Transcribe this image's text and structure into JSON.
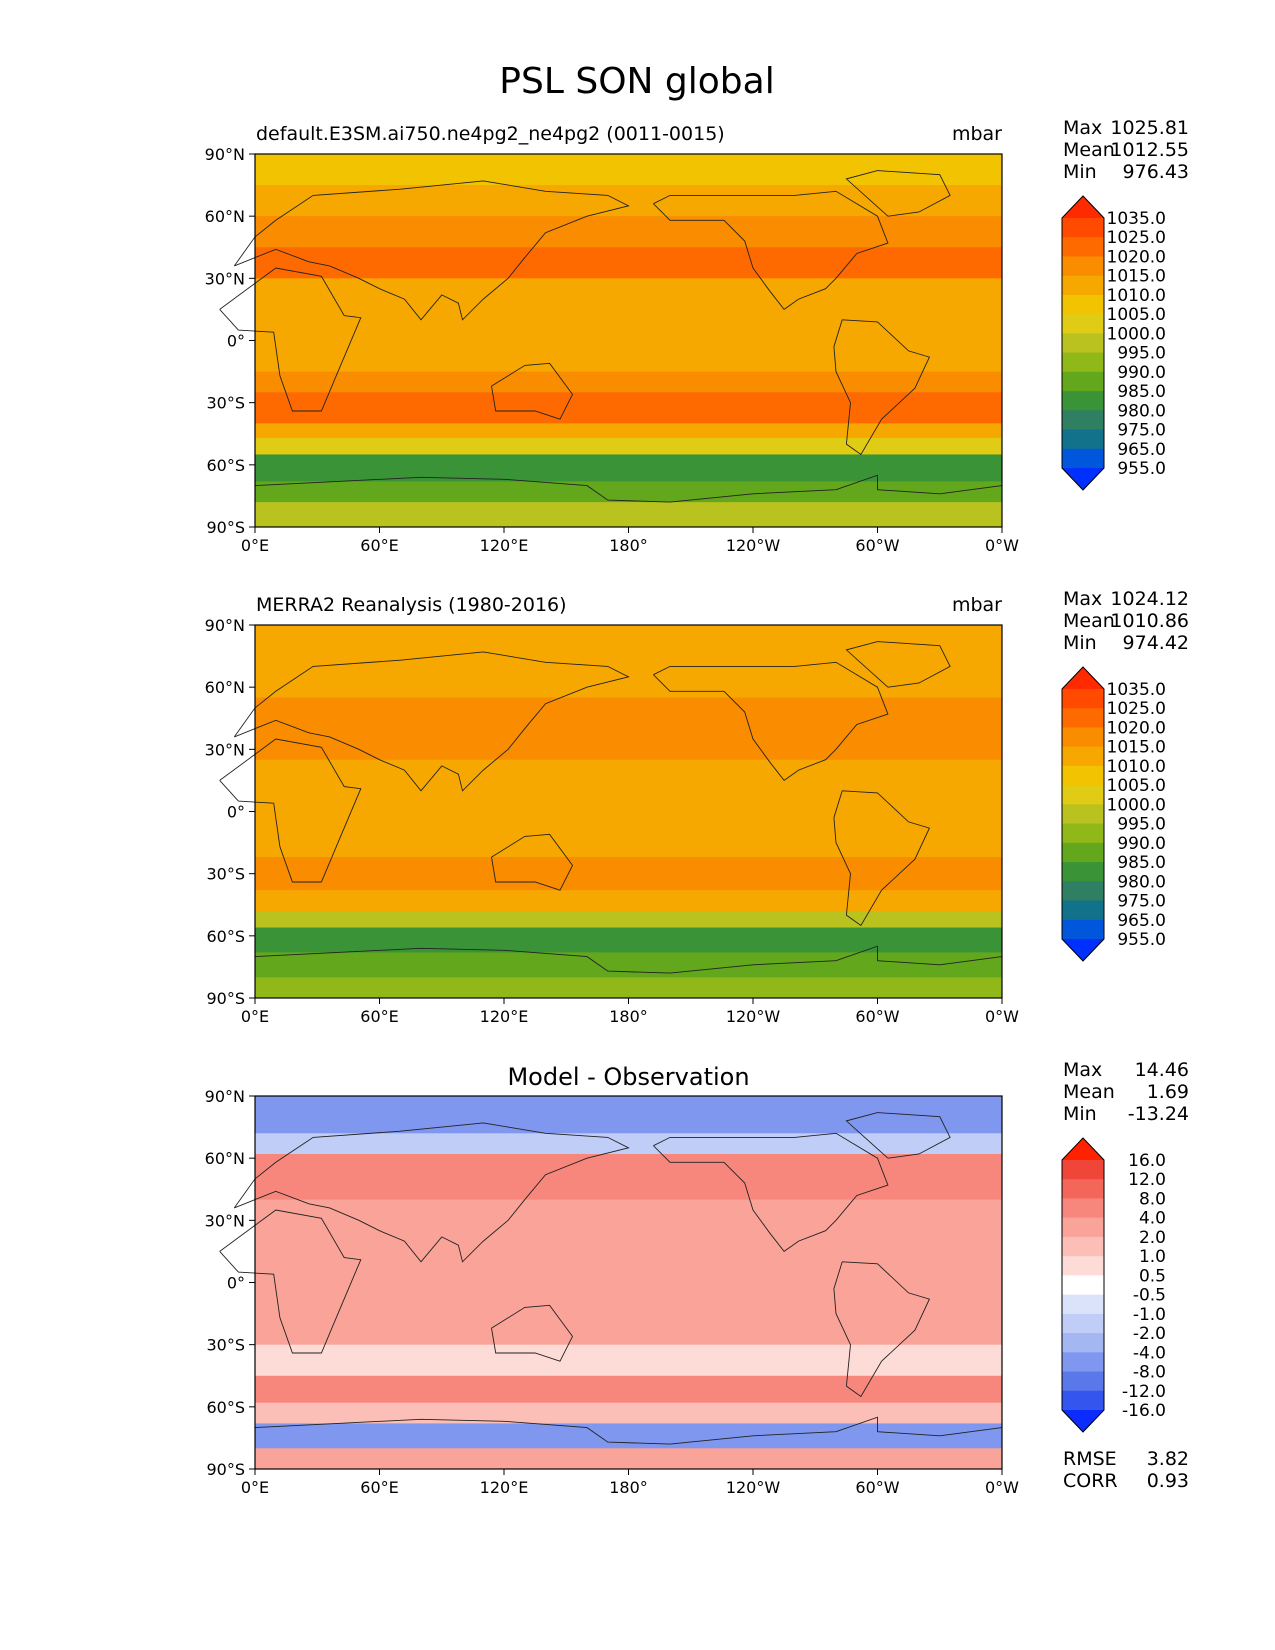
{
  "title": "PSL SON global",
  "chart_data": [
    {
      "type": "heatmap",
      "name": "model",
      "title_left": "default.E3SM.ai750.ne4pg2_ne4pg2 (0011-0015)",
      "units": "mbar",
      "x_ticks": [
        "0°E",
        "60°E",
        "120°E",
        "180°",
        "120°W",
        "60°W",
        "0°W"
      ],
      "y_ticks": [
        "90°N",
        "60°N",
        "30°N",
        "0°",
        "30°S",
        "60°S",
        "90°S"
      ],
      "stats": [
        {
          "label": "Max",
          "value": "1025.81"
        },
        {
          "label": "Mean",
          "value": "1012.55"
        },
        {
          "label": "Min",
          "value": "976.43"
        }
      ],
      "colorbar": {
        "levels": [
          "1035.0",
          "1025.0",
          "1020.0",
          "1015.0",
          "1010.0",
          "1005.0",
          "1000.0",
          "995.0",
          "990.0",
          "985.0",
          "980.0",
          "975.0",
          "965.0",
          "955.0"
        ],
        "colors": [
          "#ff2a00",
          "#ff4a00",
          "#ff6a00",
          "#fa8c00",
          "#f7a800",
          "#f2c300",
          "#e0cc14",
          "#b9c21f",
          "#90b818",
          "#62a71c",
          "#3a9437",
          "#2f7f62",
          "#13728b",
          "#0057dc",
          "#0030ff"
        ]
      },
      "zonal_bands": [
        {
          "lat_top": 90,
          "lat_bot": 75,
          "value": 1008
        },
        {
          "lat_top": 75,
          "lat_bot": 60,
          "value": 1012
        },
        {
          "lat_top": 60,
          "lat_bot": 45,
          "value": 1016
        },
        {
          "lat_top": 45,
          "lat_bot": 30,
          "value": 1022
        },
        {
          "lat_top": 30,
          "lat_bot": 15,
          "value": 1014
        },
        {
          "lat_top": 15,
          "lat_bot": -15,
          "value": 1011
        },
        {
          "lat_top": -15,
          "lat_bot": -25,
          "value": 1015
        },
        {
          "lat_top": -25,
          "lat_bot": -40,
          "value": 1021
        },
        {
          "lat_top": -40,
          "lat_bot": -47,
          "value": 1013
        },
        {
          "lat_top": -47,
          "lat_bot": -55,
          "value": 1001
        },
        {
          "lat_top": -55,
          "lat_bot": -68,
          "value": 984
        },
        {
          "lat_top": -68,
          "lat_bot": -78,
          "value": 988
        },
        {
          "lat_top": -78,
          "lat_bot": -90,
          "value": 996
        }
      ]
    },
    {
      "type": "heatmap",
      "name": "observation",
      "title_left": "MERRA2 Reanalysis (1980-2016)",
      "units": "mbar",
      "x_ticks": [
        "0°E",
        "60°E",
        "120°E",
        "180°",
        "120°W",
        "60°W",
        "0°W"
      ],
      "y_ticks": [
        "90°N",
        "60°N",
        "30°N",
        "0°",
        "30°S",
        "60°S",
        "90°S"
      ],
      "stats": [
        {
          "label": "Max",
          "value": "1024.12"
        },
        {
          "label": "Mean",
          "value": "1010.86"
        },
        {
          "label": "Min",
          "value": "974.42"
        }
      ],
      "colorbar": {
        "levels": [
          "1035.0",
          "1025.0",
          "1020.0",
          "1015.0",
          "1010.0",
          "1005.0",
          "1000.0",
          "995.0",
          "990.0",
          "985.0",
          "980.0",
          "975.0",
          "965.0",
          "955.0"
        ],
        "colors": [
          "#ff2a00",
          "#ff4a00",
          "#ff6a00",
          "#fa8c00",
          "#f7a800",
          "#f2c300",
          "#e0cc14",
          "#b9c21f",
          "#90b818",
          "#62a71c",
          "#3a9437",
          "#2f7f62",
          "#13728b",
          "#0057dc",
          "#0030ff"
        ]
      },
      "zonal_bands": [
        {
          "lat_top": 90,
          "lat_bot": 70,
          "value": 1012
        },
        {
          "lat_top": 70,
          "lat_bot": 55,
          "value": 1010
        },
        {
          "lat_top": 55,
          "lat_bot": 38,
          "value": 1016
        },
        {
          "lat_top": 38,
          "lat_bot": 25,
          "value": 1018
        },
        {
          "lat_top": 25,
          "lat_bot": -10,
          "value": 1011
        },
        {
          "lat_top": -10,
          "lat_bot": -22,
          "value": 1014
        },
        {
          "lat_top": -22,
          "lat_bot": -38,
          "value": 1019
        },
        {
          "lat_top": -38,
          "lat_bot": -48,
          "value": 1012
        },
        {
          "lat_top": -48,
          "lat_bot": -56,
          "value": 998
        },
        {
          "lat_top": -56,
          "lat_bot": -68,
          "value": 983
        },
        {
          "lat_top": -68,
          "lat_bot": -80,
          "value": 989
        },
        {
          "lat_top": -80,
          "lat_bot": -90,
          "value": 994
        }
      ]
    },
    {
      "type": "heatmap",
      "name": "difference",
      "title_center": "Model - Observation",
      "x_ticks": [
        "0°E",
        "60°E",
        "120°E",
        "180°",
        "120°W",
        "60°W",
        "0°W"
      ],
      "y_ticks": [
        "90°N",
        "60°N",
        "30°N",
        "0°",
        "30°S",
        "60°S",
        "90°S"
      ],
      "stats": [
        {
          "label": "Max",
          "value": "14.46"
        },
        {
          "label": "Mean",
          "value": "1.69"
        },
        {
          "label": "Min",
          "value": "-13.24"
        }
      ],
      "colorbar": {
        "levels": [
          "16.0",
          "12.0",
          "8.0",
          "4.0",
          "2.0",
          "1.0",
          "0.5",
          "-0.5",
          "-1.0",
          "-2.0",
          "-4.0",
          "-8.0",
          "-12.0",
          "-16.0"
        ],
        "colors": [
          "#ff2200",
          "#f0463a",
          "#f5665a",
          "#f7877c",
          "#f9a399",
          "#fbbfb7",
          "#fddbd6",
          "#ffffff",
          "#dbe3fb",
          "#c0cdf7",
          "#a4b7f3",
          "#7f97ee",
          "#5a78ea",
          "#3456ef",
          "#0c2cff"
        ]
      },
      "zonal_bands": [
        {
          "lat_top": 90,
          "lat_bot": 72,
          "value": -5
        },
        {
          "lat_top": 72,
          "lat_bot": 62,
          "value": -2
        },
        {
          "lat_top": 62,
          "lat_bot": 40,
          "value": 5
        },
        {
          "lat_top": 40,
          "lat_bot": 20,
          "value": 3
        },
        {
          "lat_top": 20,
          "lat_bot": -30,
          "value": 2.5
        },
        {
          "lat_top": -30,
          "lat_bot": -45,
          "value": 0.8
        },
        {
          "lat_top": -45,
          "lat_bot": -58,
          "value": 4
        },
        {
          "lat_top": -58,
          "lat_bot": -68,
          "value": 1.5
        },
        {
          "lat_top": -68,
          "lat_bot": -80,
          "value": -6
        },
        {
          "lat_top": -80,
          "lat_bot": -90,
          "value": 3
        }
      ],
      "footer_stats": [
        {
          "label": "RMSE",
          "value": "3.82"
        },
        {
          "label": "CORR",
          "value": "0.93"
        }
      ]
    }
  ]
}
